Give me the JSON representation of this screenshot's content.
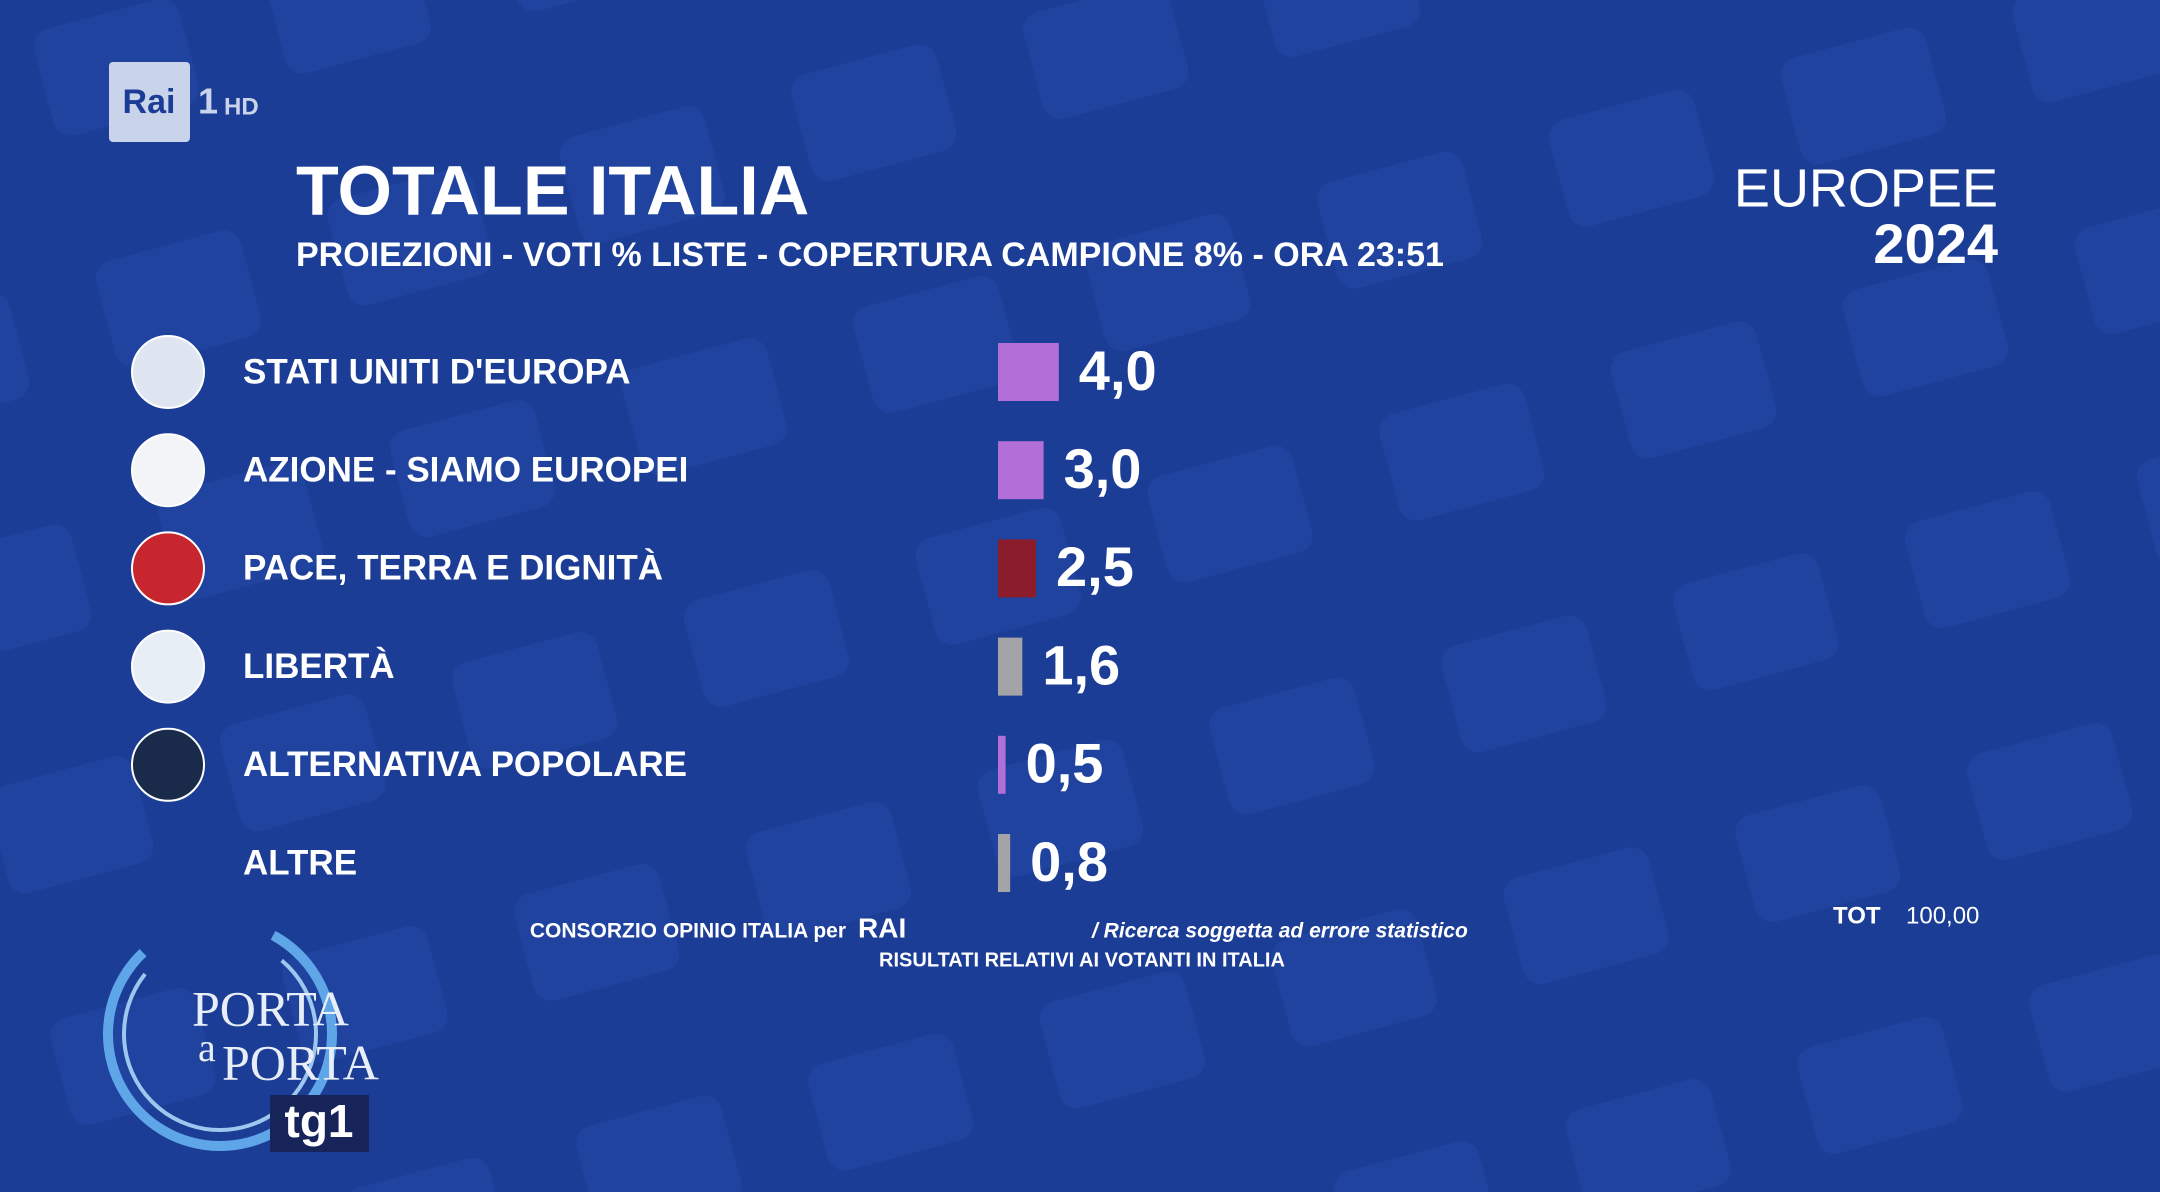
{
  "broadcast": {
    "channel": "Rai",
    "channel_number": "1",
    "channel_hd": "HD",
    "election": "EUROPEE",
    "year": "2024",
    "source": "CONSORZIO OPINIO ITALIA per",
    "source_brand": "RAI",
    "disclaimer": "/ Ricerca soggetta ad errore statistico",
    "note": "RISULTATI RELATIVI AI VOTANTI IN ITALIA",
    "total_label": "TOT",
    "total_value": "100,00",
    "show_line1": "PORTA",
    "show_line2": "a",
    "show_line3": "PORTA",
    "news_brand": "tg1"
  },
  "chart_data": {
    "type": "bar",
    "orientation": "horizontal",
    "title": "TOTALE ITALIA",
    "subtitle": "PROIEZIONI - VOTI % LISTE - COPERTURA CAMPIONE 8% - ORA 23:51",
    "categories": [
      "STATI UNITI D'EUROPA",
      "AZIONE - SIAMO EUROPEI",
      "PACE, TERRA E DIGNITÀ",
      "LIBERTÀ",
      "ALTERNATIVA POPOLARE",
      "ALTRE"
    ],
    "values": [
      4.0,
      3.0,
      2.5,
      1.6,
      0.5,
      0.8
    ],
    "value_labels": [
      "4,0",
      "3,0",
      "2,5",
      "1,6",
      "0,5",
      "0,8"
    ],
    "colors": [
      "#b36fd8",
      "#b36fd8",
      "#8a1c2c",
      "#a3a3a8",
      "#b36fd8",
      "#a3a3a8"
    ]
  }
}
